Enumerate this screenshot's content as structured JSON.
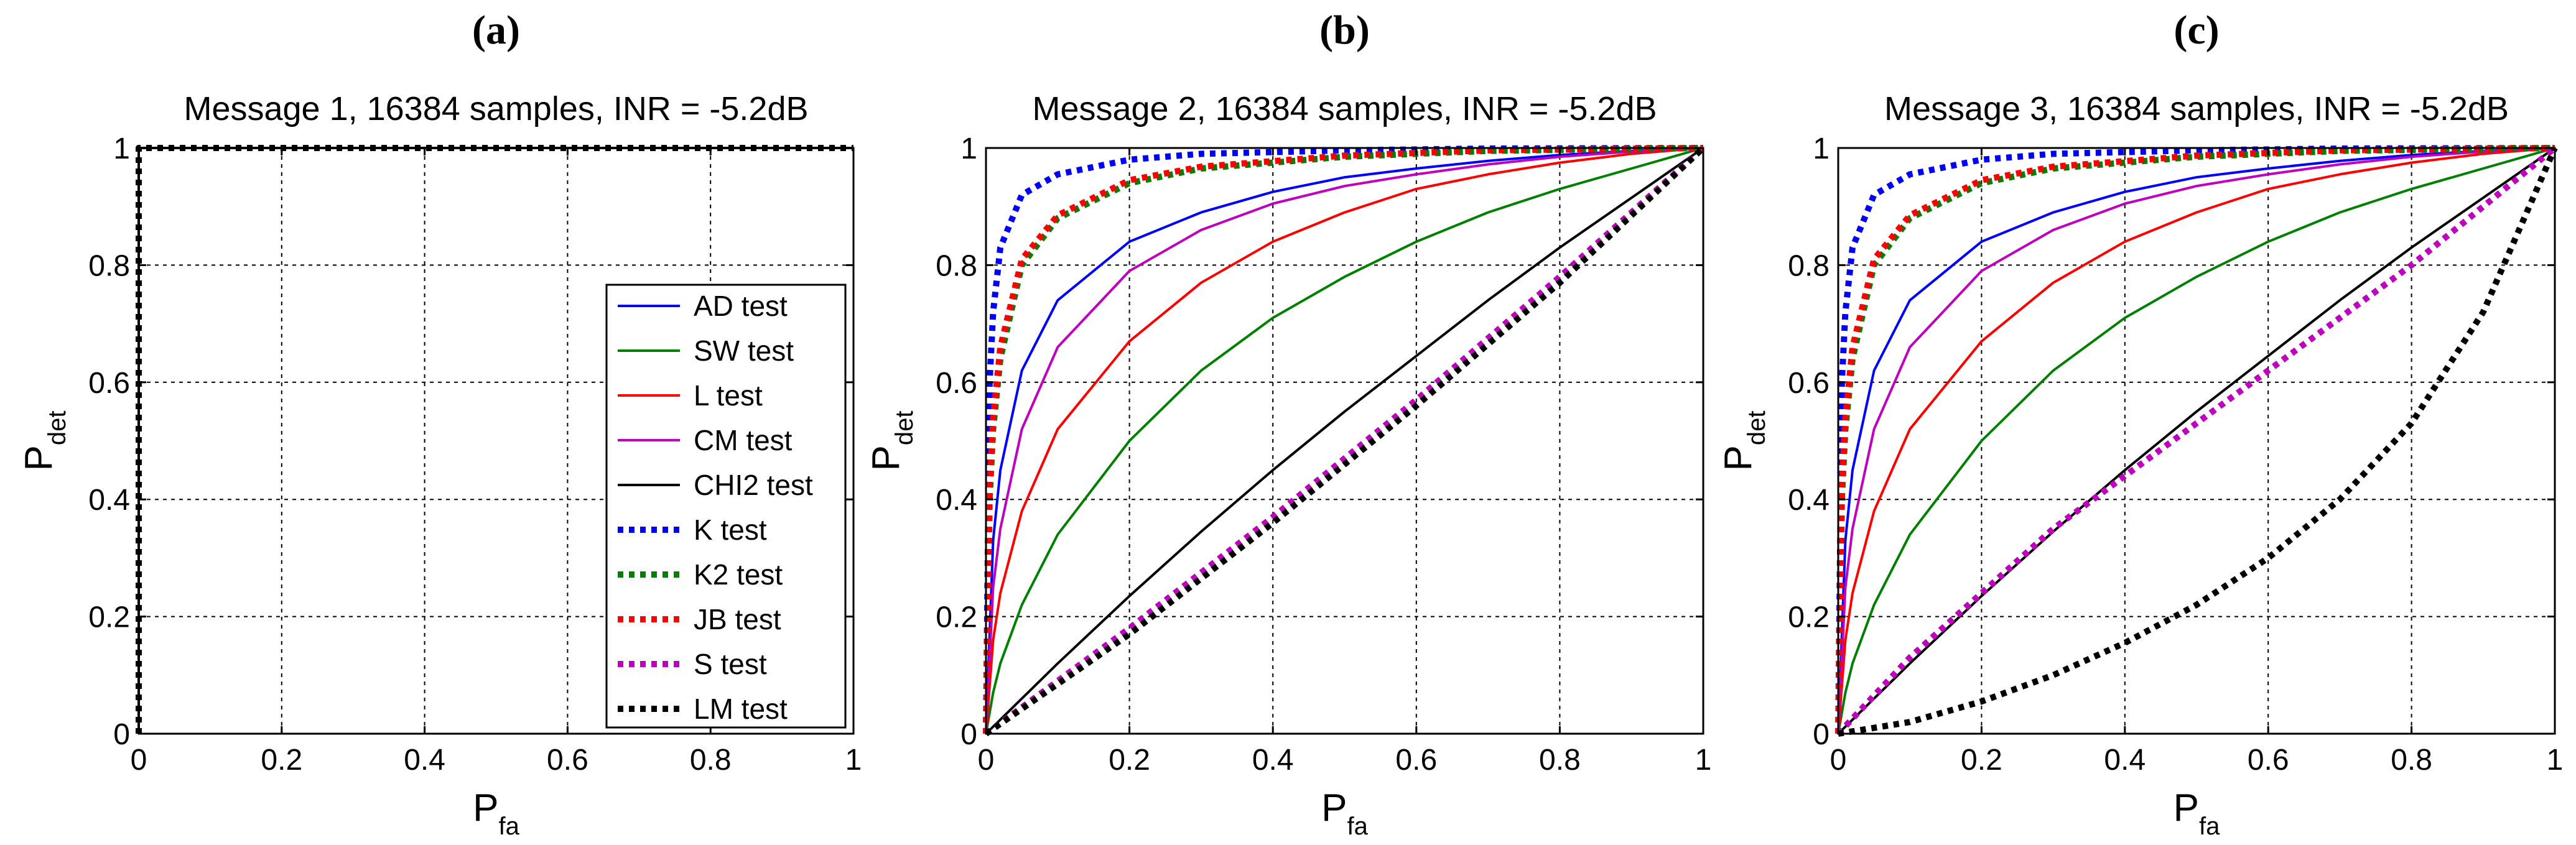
{
  "chart_data": [
    {
      "type": "line",
      "panel_label": "(a)",
      "title": "Message 1, 16384 samples, INR = -5.2dB",
      "xlabel": "P",
      "xlabel_sub": "fa",
      "ylabel": "P",
      "ylabel_sub": "det",
      "xlim": [
        0,
        1
      ],
      "ylim": [
        0,
        1
      ],
      "xticks": [
        "0",
        "0.2",
        "0.4",
        "0.6",
        "0.8",
        "1"
      ],
      "yticks": [
        "0",
        "0.2",
        "0.4",
        "0.6",
        "0.8",
        "1"
      ],
      "grid": true,
      "legend_position": "bottom-right",
      "series": [
        {
          "name": "AD test",
          "color": "#0000ff",
          "style": "solid",
          "x": [
            0,
            0,
            1
          ],
          "y": [
            0,
            1,
            1
          ]
        },
        {
          "name": "SW test",
          "color": "#008000",
          "style": "solid",
          "x": [
            0,
            0,
            1
          ],
          "y": [
            0,
            1,
            1
          ]
        },
        {
          "name": "L test",
          "color": "#ff0000",
          "style": "solid",
          "x": [
            0,
            0,
            1
          ],
          "y": [
            0,
            1,
            1
          ]
        },
        {
          "name": "CM test",
          "color": "#bf00bf",
          "style": "solid",
          "x": [
            0,
            0,
            1
          ],
          "y": [
            0,
            1,
            1
          ]
        },
        {
          "name": "CHI2 test",
          "color": "#000000",
          "style": "solid",
          "x": [
            0,
            0,
            1
          ],
          "y": [
            0,
            1,
            1
          ]
        },
        {
          "name": "K test",
          "color": "#0000ff",
          "style": "dotted",
          "x": [
            0,
            0,
            1
          ],
          "y": [
            0,
            1,
            1
          ]
        },
        {
          "name": "K2 test",
          "color": "#008000",
          "style": "dotted",
          "x": [
            0,
            0,
            1
          ],
          "y": [
            0,
            1,
            1
          ]
        },
        {
          "name": "JB test",
          "color": "#ff0000",
          "style": "dotted",
          "x": [
            0,
            0,
            1
          ],
          "y": [
            0,
            1,
            1
          ]
        },
        {
          "name": "S test",
          "color": "#bf00bf",
          "style": "dotted",
          "x": [
            0,
            0,
            1
          ],
          "y": [
            0,
            1,
            1
          ]
        },
        {
          "name": "LM test",
          "color": "#000000",
          "style": "dotted",
          "x": [
            0,
            0,
            1
          ],
          "y": [
            0,
            1,
            1
          ]
        }
      ]
    },
    {
      "type": "line",
      "panel_label": "(b)",
      "title": "Message 2,  16384 samples,  INR = -5.2dB",
      "xlabel": "P",
      "xlabel_sub": "fa",
      "ylabel": "P",
      "ylabel_sub": "det",
      "xlim": [
        0,
        1
      ],
      "ylim": [
        0,
        1
      ],
      "xticks": [
        "0",
        "0.2",
        "0.4",
        "0.6",
        "0.8",
        "1"
      ],
      "yticks": [
        "0",
        "0.2",
        "0.4",
        "0.6",
        "0.8",
        "1"
      ],
      "grid": true,
      "series": [
        {
          "name": "AD test",
          "color": "#0000ff",
          "style": "solid",
          "x": [
            0,
            0.01,
            0.02,
            0.05,
            0.1,
            0.2,
            0.3,
            0.4,
            0.5,
            0.6,
            0.7,
            0.8,
            0.9,
            1
          ],
          "y": [
            0,
            0.33,
            0.45,
            0.62,
            0.74,
            0.84,
            0.89,
            0.925,
            0.95,
            0.965,
            0.978,
            0.988,
            0.995,
            1
          ]
        },
        {
          "name": "SW test",
          "color": "#008000",
          "style": "solid",
          "x": [
            0,
            0.01,
            0.02,
            0.05,
            0.1,
            0.2,
            0.3,
            0.4,
            0.5,
            0.6,
            0.7,
            0.8,
            0.9,
            1
          ],
          "y": [
            0,
            0.07,
            0.12,
            0.22,
            0.34,
            0.5,
            0.62,
            0.71,
            0.78,
            0.84,
            0.89,
            0.93,
            0.965,
            1
          ]
        },
        {
          "name": "L test",
          "color": "#ff0000",
          "style": "solid",
          "x": [
            0,
            0.01,
            0.02,
            0.05,
            0.1,
            0.2,
            0.3,
            0.4,
            0.5,
            0.6,
            0.7,
            0.8,
            0.9,
            1
          ],
          "y": [
            0,
            0.16,
            0.24,
            0.38,
            0.52,
            0.67,
            0.77,
            0.84,
            0.89,
            0.93,
            0.955,
            0.975,
            0.99,
            1
          ]
        },
        {
          "name": "CM test",
          "color": "#bf00bf",
          "style": "solid",
          "x": [
            0,
            0.01,
            0.02,
            0.05,
            0.1,
            0.2,
            0.3,
            0.4,
            0.5,
            0.6,
            0.7,
            0.8,
            0.9,
            1
          ],
          "y": [
            0,
            0.25,
            0.35,
            0.52,
            0.66,
            0.79,
            0.86,
            0.905,
            0.935,
            0.955,
            0.972,
            0.985,
            0.994,
            1
          ]
        },
        {
          "name": "CHI2 test",
          "color": "#000000",
          "style": "solid",
          "x": [
            0,
            0.1,
            0.2,
            0.3,
            0.4,
            0.5,
            0.6,
            0.7,
            0.8,
            0.9,
            1
          ],
          "y": [
            0,
            0.12,
            0.235,
            0.345,
            0.45,
            0.55,
            0.645,
            0.74,
            0.83,
            0.915,
            1
          ]
        },
        {
          "name": "K test",
          "color": "#0000ff",
          "style": "dotted",
          "x": [
            0,
            0.005,
            0.01,
            0.02,
            0.05,
            0.1,
            0.2,
            0.3,
            0.5,
            0.7,
            1
          ],
          "y": [
            0,
            0.6,
            0.72,
            0.83,
            0.92,
            0.955,
            0.98,
            0.99,
            0.996,
            0.999,
            1
          ]
        },
        {
          "name": "K2 test",
          "color": "#008000",
          "style": "dotted",
          "x": [
            0,
            0.005,
            0.01,
            0.02,
            0.05,
            0.1,
            0.2,
            0.3,
            0.5,
            0.7,
            1
          ],
          "y": [
            0,
            0.4,
            0.52,
            0.64,
            0.8,
            0.88,
            0.94,
            0.965,
            0.985,
            0.995,
            1
          ]
        },
        {
          "name": "JB test",
          "color": "#ff0000",
          "style": "dotted",
          "x": [
            0,
            0.005,
            0.01,
            0.02,
            0.05,
            0.1,
            0.2,
            0.3,
            0.5,
            0.7,
            1
          ],
          "y": [
            0,
            0.42,
            0.54,
            0.66,
            0.81,
            0.885,
            0.945,
            0.968,
            0.987,
            0.996,
            1
          ]
        },
        {
          "name": "S test",
          "color": "#bf00bf",
          "style": "dotted",
          "x": [
            0,
            0.2,
            0.4,
            0.6,
            0.8,
            1
          ],
          "y": [
            0,
            0.18,
            0.37,
            0.57,
            0.78,
            1
          ]
        },
        {
          "name": "LM test",
          "color": "#000000",
          "style": "dotted",
          "x": [
            0,
            0.2,
            0.4,
            0.6,
            0.8,
            1
          ],
          "y": [
            0,
            0.17,
            0.36,
            0.56,
            0.77,
            1
          ]
        }
      ]
    },
    {
      "type": "line",
      "panel_label": "(c)",
      "title": "Message 3,  16384 samples,  INR = -5.2dB",
      "xlabel": "P",
      "xlabel_sub": "fa",
      "ylabel": "P",
      "ylabel_sub": "det",
      "xlim": [
        0,
        1
      ],
      "ylim": [
        0,
        1
      ],
      "xticks": [
        "0",
        "0.2",
        "0.4",
        "0.6",
        "0.8",
        "1"
      ],
      "yticks": [
        "0",
        "0.2",
        "0.4",
        "0.6",
        "0.8",
        "1"
      ],
      "grid": true,
      "series": [
        {
          "name": "AD test",
          "color": "#0000ff",
          "style": "solid",
          "x": [
            0,
            0.01,
            0.02,
            0.05,
            0.1,
            0.2,
            0.3,
            0.4,
            0.5,
            0.6,
            0.7,
            0.8,
            0.9,
            1
          ],
          "y": [
            0,
            0.33,
            0.45,
            0.62,
            0.74,
            0.84,
            0.89,
            0.925,
            0.95,
            0.965,
            0.978,
            0.988,
            0.995,
            1
          ]
        },
        {
          "name": "SW test",
          "color": "#008000",
          "style": "solid",
          "x": [
            0,
            0.01,
            0.02,
            0.05,
            0.1,
            0.2,
            0.3,
            0.4,
            0.5,
            0.6,
            0.7,
            0.8,
            0.9,
            1
          ],
          "y": [
            0,
            0.07,
            0.12,
            0.22,
            0.34,
            0.5,
            0.62,
            0.71,
            0.78,
            0.84,
            0.89,
            0.93,
            0.965,
            1
          ]
        },
        {
          "name": "L test",
          "color": "#ff0000",
          "style": "solid",
          "x": [
            0,
            0.01,
            0.02,
            0.05,
            0.1,
            0.2,
            0.3,
            0.4,
            0.5,
            0.6,
            0.7,
            0.8,
            0.9,
            1
          ],
          "y": [
            0,
            0.16,
            0.24,
            0.38,
            0.52,
            0.67,
            0.77,
            0.84,
            0.89,
            0.93,
            0.955,
            0.975,
            0.99,
            1
          ]
        },
        {
          "name": "CM test",
          "color": "#bf00bf",
          "style": "solid",
          "x": [
            0,
            0.01,
            0.02,
            0.05,
            0.1,
            0.2,
            0.3,
            0.4,
            0.5,
            0.6,
            0.7,
            0.8,
            0.9,
            1
          ],
          "y": [
            0,
            0.25,
            0.35,
            0.52,
            0.66,
            0.79,
            0.86,
            0.905,
            0.935,
            0.955,
            0.972,
            0.985,
            0.994,
            1
          ]
        },
        {
          "name": "CHI2 test",
          "color": "#000000",
          "style": "solid",
          "x": [
            0,
            0.1,
            0.2,
            0.3,
            0.4,
            0.5,
            0.6,
            0.7,
            0.8,
            0.9,
            1
          ],
          "y": [
            0,
            0.12,
            0.235,
            0.345,
            0.45,
            0.55,
            0.645,
            0.74,
            0.83,
            0.915,
            1
          ]
        },
        {
          "name": "K test",
          "color": "#0000ff",
          "style": "dotted",
          "x": [
            0,
            0.005,
            0.01,
            0.02,
            0.05,
            0.1,
            0.2,
            0.3,
            0.5,
            0.7,
            1
          ],
          "y": [
            0,
            0.6,
            0.72,
            0.83,
            0.92,
            0.955,
            0.98,
            0.99,
            0.996,
            0.999,
            1
          ]
        },
        {
          "name": "K2 test",
          "color": "#008000",
          "style": "dotted",
          "x": [
            0,
            0.005,
            0.01,
            0.02,
            0.05,
            0.1,
            0.2,
            0.3,
            0.5,
            0.7,
            1
          ],
          "y": [
            0,
            0.4,
            0.52,
            0.64,
            0.8,
            0.88,
            0.94,
            0.965,
            0.985,
            0.995,
            1
          ]
        },
        {
          "name": "JB test",
          "color": "#ff0000",
          "style": "dotted",
          "x": [
            0,
            0.005,
            0.01,
            0.02,
            0.05,
            0.1,
            0.2,
            0.3,
            0.5,
            0.7,
            1
          ],
          "y": [
            0,
            0.42,
            0.54,
            0.66,
            0.81,
            0.885,
            0.945,
            0.968,
            0.987,
            0.996,
            1
          ]
        },
        {
          "name": "S test",
          "color": "#bf00bf",
          "style": "dotted",
          "x": [
            0,
            0.1,
            0.2,
            0.3,
            0.4,
            0.5,
            0.6,
            0.7,
            0.8,
            0.9,
            1
          ],
          "y": [
            0,
            0.13,
            0.24,
            0.35,
            0.44,
            0.53,
            0.62,
            0.71,
            0.8,
            0.9,
            1
          ]
        },
        {
          "name": "LM test",
          "color": "#000000",
          "style": "dotted",
          "x": [
            0,
            0.1,
            0.2,
            0.3,
            0.4,
            0.5,
            0.6,
            0.7,
            0.8,
            0.9,
            1
          ],
          "y": [
            0,
            0.02,
            0.055,
            0.1,
            0.155,
            0.22,
            0.3,
            0.4,
            0.53,
            0.72,
            1
          ]
        }
      ]
    }
  ]
}
